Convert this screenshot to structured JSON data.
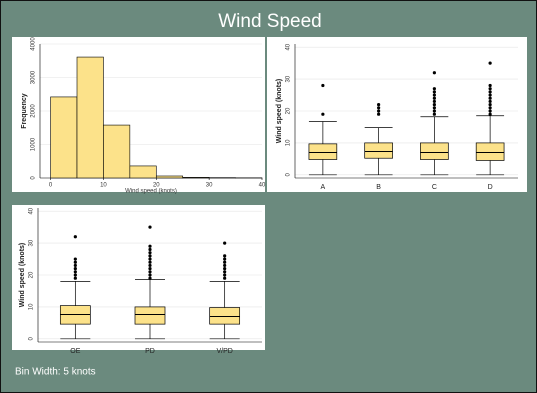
{
  "title": "Wind Speed",
  "footnote": "Bin Width: 5 knots",
  "chart_data": [
    {
      "type": "histogram",
      "xlabel": "Wind speed (knots)",
      "ylabel": "Frequency",
      "color": "#fce28a",
      "bins": [
        0,
        5,
        10,
        15,
        20,
        25,
        30,
        35,
        40
      ],
      "values": [
        2420,
        3610,
        1580,
        360,
        60,
        20,
        10,
        5
      ],
      "xlim": [
        -2,
        40
      ],
      "ylim": [
        0,
        4000
      ],
      "xticks": [
        0,
        10,
        20,
        30,
        40
      ],
      "yticks": [
        0,
        1000,
        2000,
        3000,
        4000
      ],
      "grid": true
    },
    {
      "type": "box",
      "ylabel": "Wind speed (knots)",
      "color": "#fce28a",
      "categories": [
        "A",
        "B",
        "C",
        "D"
      ],
      "boxes": [
        {
          "min": 0,
          "q1": 4.8,
          "median": 7,
          "q3": 9.7,
          "max": 16.7,
          "outliers": [
            19,
            28
          ]
        },
        {
          "min": 0,
          "q1": 5.2,
          "median": 7.3,
          "q3": 10,
          "max": 14.8,
          "outliers": [
            19,
            20,
            21,
            22
          ]
        },
        {
          "min": 0,
          "q1": 4.8,
          "median": 7,
          "q3": 10,
          "max": 18.2,
          "outliers": [
            19,
            20,
            21,
            22,
            23,
            24,
            25,
            26,
            27,
            32
          ]
        },
        {
          "min": 0,
          "q1": 4.5,
          "median": 7,
          "q3": 10,
          "max": 18.5,
          "outliers": [
            19,
            20,
            21,
            22,
            23,
            24,
            25,
            26,
            27,
            28,
            35
          ]
        }
      ],
      "ylim": [
        -1,
        41
      ],
      "yticks": [
        0,
        10,
        20,
        30,
        40
      ],
      "grid": true
    },
    {
      "type": "box",
      "ylabel": "Wind speed (knots)",
      "color": "#fce28a",
      "categories": [
        "OE",
        "PD",
        "V/PD"
      ],
      "boxes": [
        {
          "min": 0,
          "q1": 4.6,
          "median": 7.6,
          "q3": 10.4,
          "max": 18,
          "outliers": [
            19,
            20,
            21,
            22,
            23,
            24,
            25,
            32
          ]
        },
        {
          "min": 0,
          "q1": 4.6,
          "median": 7.6,
          "q3": 10,
          "max": 18.6,
          "outliers": [
            19,
            20,
            21,
            22,
            23,
            24,
            25,
            26,
            27,
            28,
            29,
            35
          ]
        },
        {
          "min": 0,
          "q1": 4.6,
          "median": 7,
          "q3": 9.8,
          "max": 18,
          "outliers": [
            19,
            20,
            21,
            22,
            23,
            24,
            25,
            26,
            30
          ]
        }
      ],
      "ylim": [
        -1,
        41
      ],
      "yticks": [
        0,
        10,
        20,
        30,
        40
      ],
      "grid": true
    }
  ]
}
